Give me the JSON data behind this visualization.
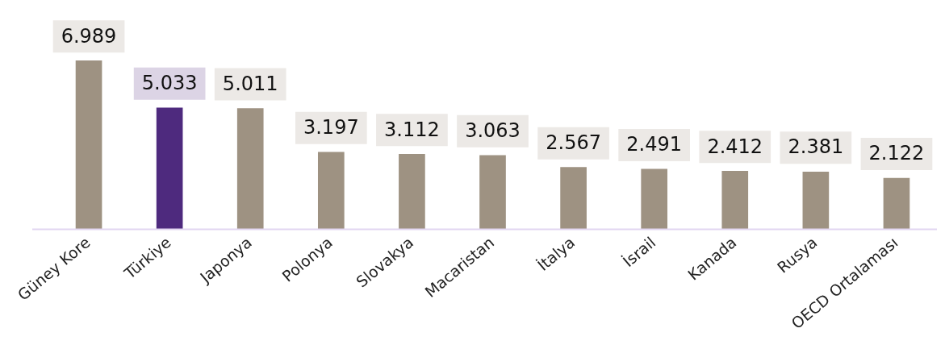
{
  "chart_data": {
    "type": "bar",
    "categories": [
      "Güney Kore",
      "Türkiye",
      "Japonya",
      "Polonya",
      "Slovakya",
      "Macaristan",
      "İtalya",
      "İsrail",
      "Kanada",
      "Rusya",
      "OECD Ortalaması"
    ],
    "values": [
      6989,
      5033,
      5011,
      3197,
      3112,
      3063,
      2567,
      2491,
      2412,
      2381,
      2122
    ],
    "value_labels": [
      "6.989",
      "5.033",
      "5.011",
      "3.197",
      "3.112",
      "3.063",
      "2.567",
      "2.491",
      "2.412",
      "2.381",
      "2.122"
    ],
    "colors": [
      "#9e9282",
      "#4e2a7e",
      "#9e9282",
      "#9e9282",
      "#9e9282",
      "#9e9282",
      "#9e9282",
      "#9e9282",
      "#9e9282",
      "#9e9282",
      "#9e9282"
    ],
    "grid": false,
    "legend": false
  }
}
